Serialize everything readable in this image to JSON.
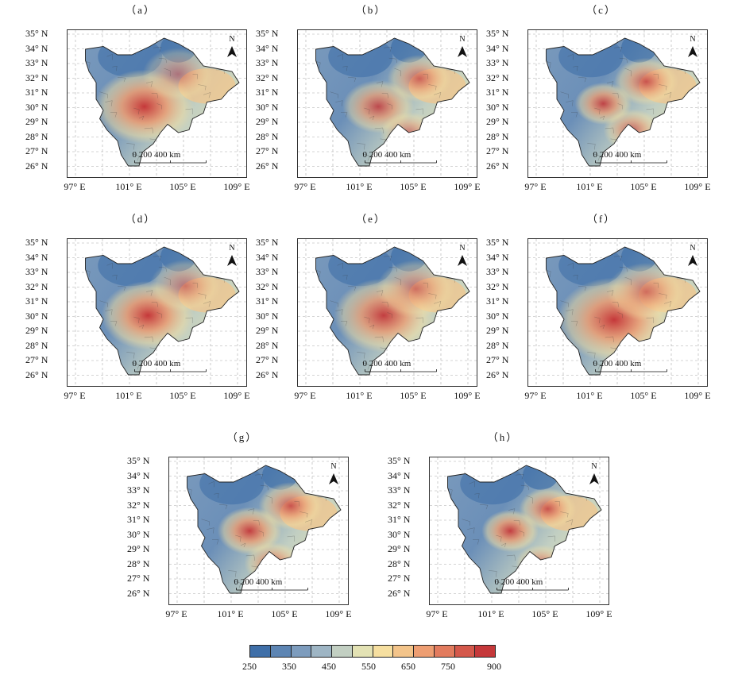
{
  "panels": [
    {
      "label": "（a）",
      "hotspots": [
        [
          0.43,
          0.52,
          1.0,
          0.28
        ],
        [
          0.62,
          0.3,
          0.5,
          0.2
        ]
      ]
    },
    {
      "label": "（b）",
      "hotspots": [
        [
          0.45,
          0.52,
          0.85,
          0.2
        ],
        [
          0.68,
          0.33,
          0.7,
          0.18
        ],
        [
          0.62,
          0.7,
          0.6,
          0.16
        ]
      ]
    },
    {
      "label": "（c）",
      "hotspots": [
        [
          0.42,
          0.5,
          0.9,
          0.16
        ],
        [
          0.66,
          0.35,
          0.8,
          0.18
        ],
        [
          0.58,
          0.68,
          0.7,
          0.16
        ]
      ]
    },
    {
      "label": "（d）",
      "hotspots": [
        [
          0.45,
          0.52,
          1.0,
          0.26
        ],
        [
          0.66,
          0.32,
          0.55,
          0.2
        ]
      ]
    },
    {
      "label": "（e）",
      "hotspots": [
        [
          0.48,
          0.52,
          0.95,
          0.28
        ],
        [
          0.66,
          0.34,
          0.6,
          0.22
        ]
      ]
    },
    {
      "label": "（f）",
      "hotspots": [
        [
          0.48,
          0.55,
          1.0,
          0.32
        ],
        [
          0.66,
          0.36,
          0.65,
          0.22
        ]
      ]
    },
    {
      "label": "（g）",
      "hotspots": [
        [
          0.45,
          0.5,
          0.95,
          0.18
        ],
        [
          0.68,
          0.33,
          0.8,
          0.18
        ],
        [
          0.58,
          0.72,
          0.7,
          0.16
        ]
      ]
    },
    {
      "label": "（h）",
      "hotspots": [
        [
          0.45,
          0.5,
          0.95,
          0.16
        ],
        [
          0.66,
          0.35,
          0.8,
          0.16
        ],
        [
          0.62,
          0.72,
          0.6,
          0.14
        ]
      ]
    }
  ],
  "axes": {
    "lat_labels": [
      "35° N",
      "34° N",
      "33° N",
      "32° N",
      "31° N",
      "30° N",
      "29° N",
      "28° N",
      "27° N",
      "26° N"
    ],
    "lon_labels": [
      "97° E",
      "101° E",
      "105° E",
      "109° E"
    ]
  },
  "north_label": "N",
  "scale_bar": {
    "ticks": [
      "0",
      "200",
      "400"
    ],
    "unit": "km"
  },
  "legend": {
    "tick_labels": [
      "250",
      "350",
      "450",
      "550",
      "650",
      "750",
      "900"
    ],
    "colors": [
      "#3f6fa8",
      "#5d85b3",
      "#7d9cbd",
      "#9eb5c4",
      "#c2cfc2",
      "#e3e2b4",
      "#f6dfa0",
      "#f3c48a",
      "#ee9e72",
      "#e27b5e",
      "#d4584b",
      "#c5383a"
    ]
  }
}
